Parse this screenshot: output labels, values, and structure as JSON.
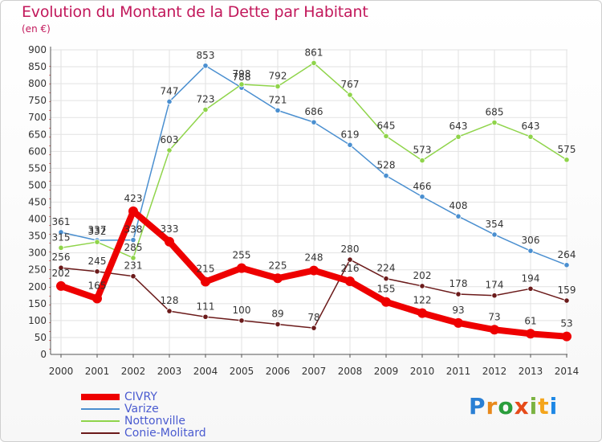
{
  "header": {
    "title": "Evolution du Montant de la Dette par Habitant",
    "unit": "(en €)"
  },
  "logo": {
    "letters": [
      "P",
      "r",
      "o",
      "x",
      "i",
      "t",
      "i"
    ],
    "colors": [
      "#2a7fd4",
      "#e8891c",
      "#2a9d3c",
      "#e64a19",
      "#7cb342",
      "#f4a51c",
      "#1e88e5"
    ]
  },
  "chart_data": {
    "type": "line",
    "title": "Evolution du Montant de la Dette par Habitant",
    "subtitle": "(en €)",
    "x": [
      "2000",
      "2001",
      "2002",
      "2003",
      "2004",
      "2005",
      "2006",
      "2007",
      "2008",
      "2009",
      "2010",
      "2011",
      "2012",
      "2013",
      "2014"
    ],
    "ylim": [
      0,
      900
    ],
    "yticks": [
      0,
      50,
      100,
      150,
      200,
      250,
      300,
      350,
      400,
      450,
      500,
      550,
      600,
      650,
      700,
      750,
      800,
      850,
      900
    ],
    "grid": true,
    "legend_position": "bottom-left",
    "series": [
      {
        "name": "Varize",
        "color": "#4a8fd0",
        "values": [
          361,
          337,
          338,
          747,
          853,
          788,
          721,
          686,
          619,
          528,
          466,
          408,
          354,
          306,
          264
        ]
      },
      {
        "name": "Nottonville",
        "color": "#8fd44a",
        "values": [
          315,
          332,
          285,
          603,
          723,
          798,
          792,
          861,
          767,
          645,
          573,
          643,
          685,
          643,
          575
        ]
      },
      {
        "name": "Conie-Molitard",
        "color": "#6b1a1a",
        "values": [
          256,
          245,
          231,
          128,
          111,
          100,
          89,
          78,
          280,
          224,
          202,
          178,
          174,
          194,
          159
        ]
      },
      {
        "name": "CIVRY",
        "color": "#ee0000",
        "values": [
          202,
          165,
          423,
          333,
          215,
          255,
          225,
          248,
          216,
          155,
          122,
          93,
          73,
          61,
          53
        ]
      }
    ]
  }
}
